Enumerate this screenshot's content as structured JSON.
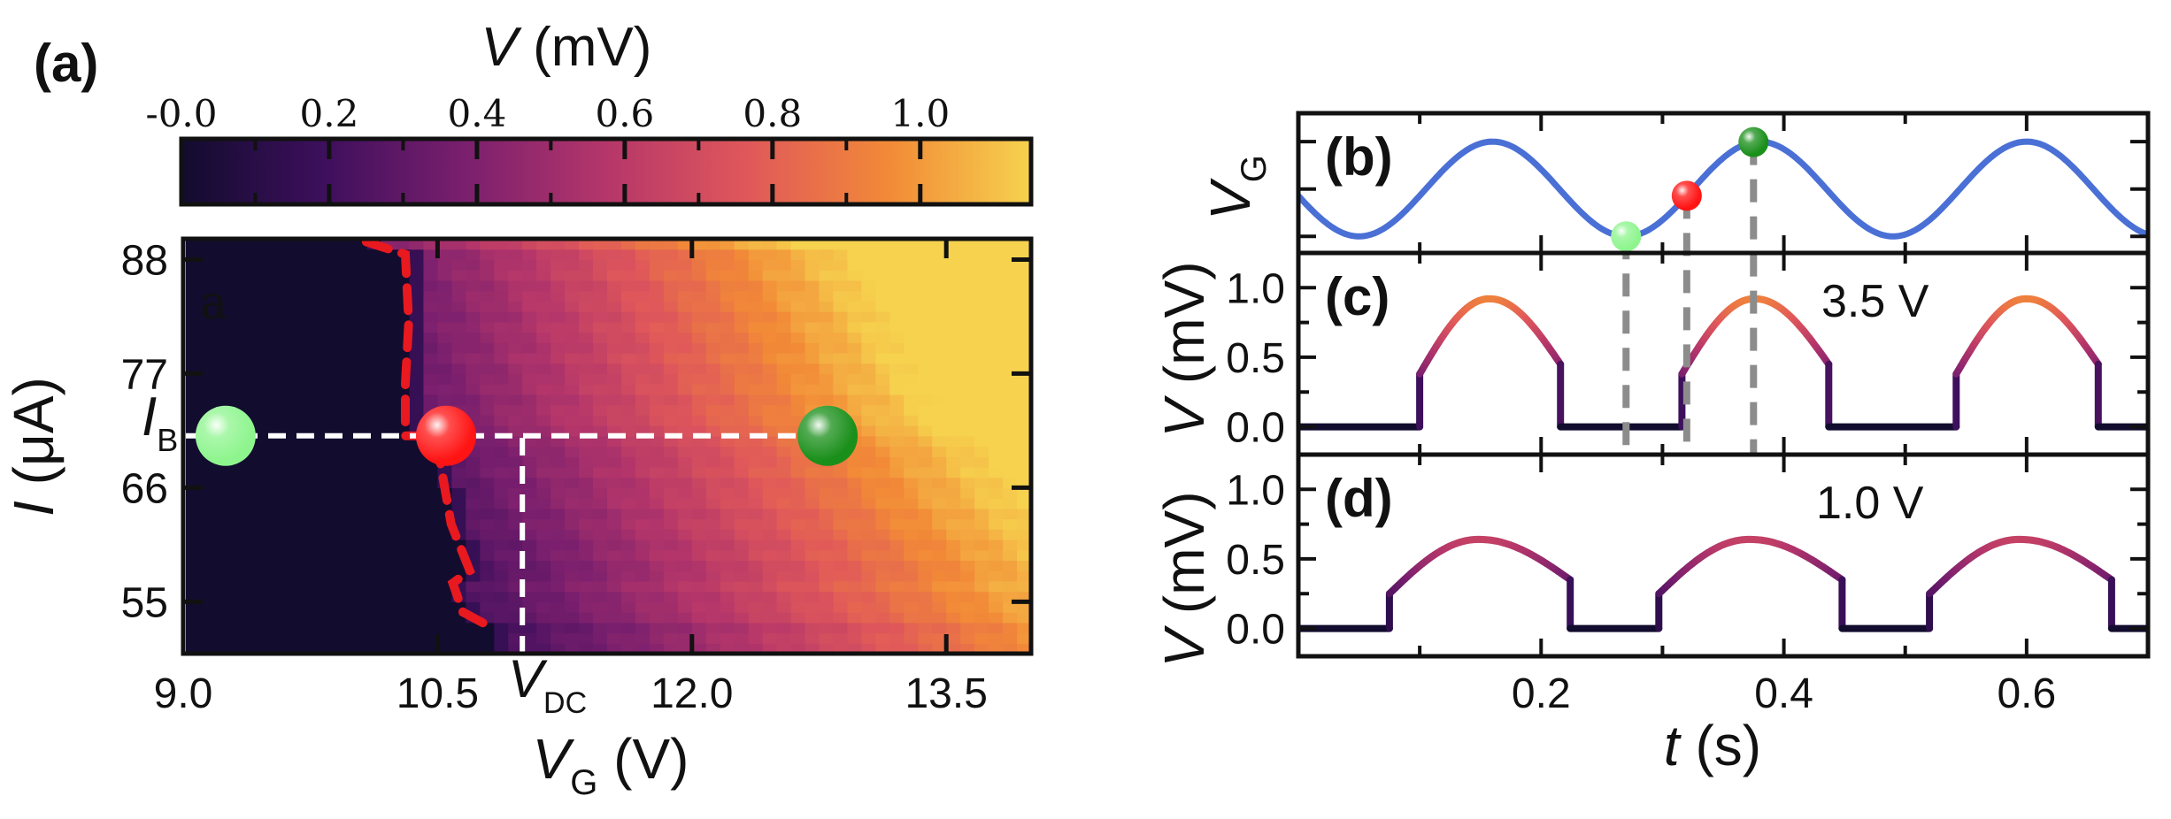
{
  "chart_data": [
    {
      "panel": "(a)",
      "type": "heatmap",
      "colorbar": {
        "title_italic": "V",
        "title_unit": " (mV)",
        "tick_labels": [
          "-0.0",
          "0.2",
          "0.4",
          "0.6",
          "0.8",
          "1.0"
        ],
        "tick_values": [
          0.0,
          0.2,
          0.4,
          0.6,
          0.8,
          1.0
        ],
        "range": [
          0.0,
          1.15
        ],
        "colors": [
          "#120c2e",
          "#3d0f5c",
          "#7a1f6e",
          "#b5366a",
          "#e0585a",
          "#f28a37",
          "#f6d24e"
        ]
      },
      "xlabel_italic": "V",
      "xlabel_sub": "G",
      "xlabel_unit": " (V)",
      "ylabel_italic": "I",
      "ylabel_unit": " (μA)",
      "xlim": [
        9.0,
        14.0
      ],
      "ylim": [
        50,
        90
      ],
      "x_ticks": [
        "9.0",
        "10.5",
        "12.0",
        "13.5"
      ],
      "x_tick_values": [
        9.0,
        10.5,
        12.0,
        13.5
      ],
      "y_ticks": [
        "88",
        "77",
        "66",
        "55"
      ],
      "y_tick_values": [
        88,
        77,
        66,
        55
      ],
      "critical_boundary": {
        "color": "#e8191f",
        "x": [
          10.08,
          10.31,
          10.33,
          10.31,
          10.31,
          10.5,
          10.51,
          10.58,
          10.69,
          10.59,
          10.65,
          10.82
        ],
        "y": [
          89.7,
          88.5,
          82.0,
          76.0,
          71.0,
          71.0,
          69.0,
          62.5,
          58.0,
          56.8,
          54.0,
          52.5
        ]
      },
      "bias_line": {
        "label_italic": "I",
        "label_sub": "B",
        "y": 71,
        "x": [
          9.0,
          12.8
        ]
      },
      "vdc_line": {
        "label_italic": "V",
        "label_sub": "DC",
        "x": 11.0,
        "y": [
          50,
          71
        ]
      },
      "markers": [
        {
          "x": 9.25,
          "y": 71,
          "color": "#8ef58e"
        },
        {
          "x": 10.55,
          "y": 71,
          "color": "#ff1414"
        },
        {
          "x": 12.8,
          "y": 71,
          "color": "#1a8f1a"
        }
      ],
      "corner_label": "a"
    },
    {
      "panel": "(b)",
      "type": "line",
      "ylabel_italic": "V",
      "ylabel_sub": "G",
      "xlim": [
        0.0,
        0.7
      ],
      "ylim": [
        -1.35,
        1.6
      ],
      "series": [
        {
          "color": "#4a70d6",
          "period": 0.22,
          "phase_peak": 0.16,
          "amplitude": 1.0
        }
      ],
      "markers": [
        {
          "x": 0.27,
          "color": "#8ef58e"
        },
        {
          "x": 0.32,
          "color": "#ff1414"
        },
        {
          "x": 0.375,
          "color": "#1a8f1a"
        }
      ]
    },
    {
      "panel": "(c)",
      "type": "line",
      "ylabel_italic": "V",
      "ylabel_unit": " (mV)",
      "note": "3.5 V",
      "xlim": [
        0.0,
        0.7
      ],
      "ylim": [
        -0.2,
        1.25
      ],
      "y_ticks": [
        "0.0",
        "0.5",
        "1.0"
      ],
      "y_tick_values": [
        0.0,
        0.5,
        1.0
      ],
      "pulses": [
        {
          "start": 0.1,
          "end": 0.216,
          "peak": 0.92,
          "step": 0.38,
          "end_level": 0.45
        },
        {
          "start": 0.316,
          "end": 0.437,
          "peak": 0.92,
          "step": 0.38,
          "end_level": 0.45
        },
        {
          "start": 0.542,
          "end": 0.659,
          "peak": 0.92,
          "step": 0.38,
          "end_level": 0.45
        }
      ]
    },
    {
      "panel": "(d)",
      "type": "line",
      "ylabel_italic": "V",
      "ylabel_unit": " (mV)",
      "note": "1.0 V",
      "xlabel_italic": "t",
      "xlabel_unit": " (s)",
      "xlim": [
        0.0,
        0.7
      ],
      "ylim": [
        -0.2,
        1.25
      ],
      "y_ticks": [
        "0.0",
        "0.5",
        "1.0"
      ],
      "y_tick_values": [
        0.0,
        0.5,
        1.0
      ],
      "x_ticks": [
        "0.2",
        "0.4",
        "0.6"
      ],
      "x_tick_values": [
        0.2,
        0.4,
        0.6
      ],
      "pulses": [
        {
          "start": 0.075,
          "end": 0.224,
          "peak": 0.64,
          "step": 0.25,
          "end_level": 0.35
        },
        {
          "start": 0.297,
          "end": 0.448,
          "peak": 0.64,
          "step": 0.25,
          "end_level": 0.35
        },
        {
          "start": 0.52,
          "end": 0.67,
          "peak": 0.64,
          "step": 0.25,
          "end_level": 0.35
        }
      ]
    }
  ]
}
